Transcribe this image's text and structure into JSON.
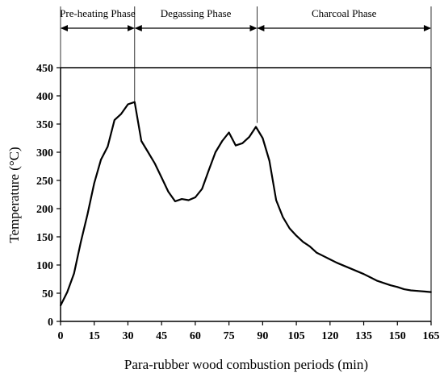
{
  "chart_data": {
    "type": "line",
    "title": "",
    "xlabel": "Para-rubber wood combustion periods (min)",
    "ylabel": "Temperature (°C)",
    "xlim": [
      0,
      165
    ],
    "ylim": [
      0,
      450
    ],
    "xticks": [
      0,
      15,
      30,
      45,
      60,
      75,
      90,
      105,
      120,
      135,
      150,
      165
    ],
    "yticks": [
      0,
      50,
      100,
      150,
      200,
      250,
      300,
      350,
      400,
      450
    ],
    "grid": false,
    "legend": "none",
    "series": [
      {
        "x": [
          0,
          3,
          6,
          9,
          12,
          15,
          18,
          21,
          24,
          27,
          30,
          33,
          36,
          39,
          42,
          45,
          48,
          51,
          54,
          57,
          60,
          63,
          66,
          69,
          72,
          75,
          78,
          81,
          84,
          87,
          90,
          93,
          96,
          99,
          102,
          105,
          108,
          111,
          114,
          117,
          120,
          123,
          126,
          129,
          132,
          135,
          138,
          141,
          144,
          147,
          150,
          153,
          156,
          159,
          162,
          165
        ],
        "y": [
          28,
          52,
          85,
          140,
          190,
          245,
          287,
          310,
          357,
          368,
          385,
          389,
          320,
          300,
          280,
          255,
          230,
          213,
          217,
          215,
          220,
          235,
          268,
          300,
          320,
          335,
          312,
          316,
          327,
          345,
          325,
          285,
          215,
          185,
          165,
          152,
          141,
          133,
          122,
          116,
          110,
          104,
          99,
          94,
          89,
          84,
          78,
          72,
          68,
          64,
          61,
          57,
          55,
          54,
          53,
          52
        ]
      }
    ],
    "phases": [
      {
        "label": "Pre-heating Phase",
        "start": 0,
        "end": 33
      },
      {
        "label": "Degassing Phase",
        "start": 33,
        "end": 87.5
      },
      {
        "label": "Charcoal Phase",
        "start": 87.5,
        "end": 165
      }
    ],
    "colors": {
      "line": "#000000",
      "axis": "#000000"
    }
  }
}
